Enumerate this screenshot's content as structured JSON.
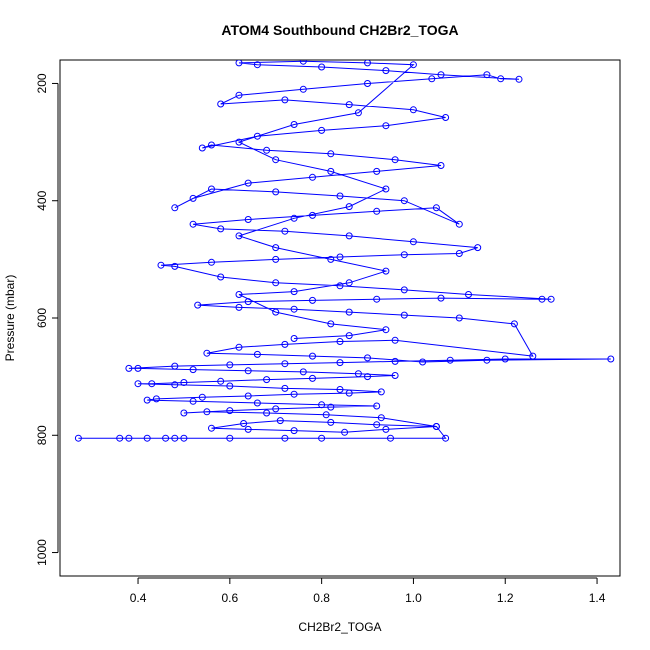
{
  "chart_data": {
    "type": "line",
    "title": "ATOM4 Southbound CH2Br2_TOGA",
    "xlabel": "CH2Br2_TOGA",
    "ylabel": "Pressure (mbar)",
    "xlim": [
      0.23,
      1.45
    ],
    "ylim": [
      1040,
      160
    ],
    "y_reversed": true,
    "xticks": [
      0.4,
      0.6,
      0.8,
      1.0,
      1.2,
      1.4
    ],
    "xtick_labels": [
      "0.4",
      "0.6",
      "0.8",
      "1.0",
      "1.2",
      "1.4"
    ],
    "yticks": [
      200,
      400,
      600,
      800,
      1000
    ],
    "ytick_labels": [
      "200",
      "400",
      "600",
      "800",
      "1000"
    ],
    "grid": false,
    "legend": "none",
    "series": [
      {
        "color": "#0000ff",
        "marker": "open-circle",
        "points": [
          [
            0.27,
            805
          ],
          [
            0.36,
            805
          ],
          [
            0.38,
            805
          ],
          [
            0.42,
            805
          ],
          [
            0.46,
            805
          ],
          [
            0.48,
            805
          ],
          [
            0.5,
            805
          ],
          [
            0.6,
            805
          ],
          [
            0.72,
            805
          ],
          [
            0.8,
            805
          ],
          [
            0.95,
            805
          ],
          [
            1.07,
            805
          ],
          [
            1.05,
            785
          ],
          [
            0.94,
            790
          ],
          [
            0.85,
            795
          ],
          [
            0.74,
            792
          ],
          [
            0.64,
            790
          ],
          [
            0.56,
            788
          ],
          [
            0.63,
            780
          ],
          [
            0.71,
            775
          ],
          [
            0.82,
            778
          ],
          [
            0.92,
            782
          ],
          [
            1.05,
            785
          ],
          [
            0.93,
            770
          ],
          [
            0.81,
            765
          ],
          [
            0.68,
            762
          ],
          [
            0.55,
            760
          ],
          [
            0.5,
            762
          ],
          [
            0.6,
            758
          ],
          [
            0.7,
            755
          ],
          [
            0.82,
            752
          ],
          [
            0.92,
            750
          ],
          [
            0.8,
            748
          ],
          [
            0.66,
            745
          ],
          [
            0.52,
            742
          ],
          [
            0.42,
            740
          ],
          [
            0.44,
            738
          ],
          [
            0.54,
            735
          ],
          [
            0.64,
            733
          ],
          [
            0.74,
            730
          ],
          [
            0.86,
            728
          ],
          [
            0.93,
            726
          ],
          [
            0.84,
            722
          ],
          [
            0.72,
            720
          ],
          [
            0.6,
            716
          ],
          [
            0.48,
            714
          ],
          [
            0.4,
            712
          ],
          [
            0.43,
            712
          ],
          [
            0.5,
            710
          ],
          [
            0.58,
            708
          ],
          [
            0.68,
            705
          ],
          [
            0.78,
            703
          ],
          [
            0.9,
            700
          ],
          [
            0.96,
            698
          ],
          [
            0.88,
            695
          ],
          [
            0.76,
            692
          ],
          [
            0.64,
            690
          ],
          [
            0.52,
            688
          ],
          [
            0.4,
            686
          ],
          [
            0.38,
            686
          ],
          [
            0.48,
            682
          ],
          [
            0.6,
            680
          ],
          [
            0.72,
            678
          ],
          [
            0.84,
            676
          ],
          [
            0.96,
            674
          ],
          [
            1.08,
            672
          ],
          [
            1.2,
            670
          ],
          [
            1.43,
            670
          ],
          [
            1.16,
            672
          ],
          [
            1.02,
            675
          ],
          [
            0.9,
            668
          ],
          [
            0.78,
            665
          ],
          [
            0.66,
            662
          ],
          [
            0.55,
            660
          ],
          [
            0.62,
            650
          ],
          [
            0.72,
            645
          ],
          [
            0.84,
            640
          ],
          [
            0.96,
            638
          ],
          [
            1.26,
            665
          ],
          [
            1.22,
            610
          ],
          [
            1.1,
            600
          ],
          [
            0.98,
            595
          ],
          [
            0.86,
            590
          ],
          [
            0.74,
            585
          ],
          [
            0.62,
            582
          ],
          [
            0.53,
            578
          ],
          [
            0.64,
            572
          ],
          [
            0.78,
            570
          ],
          [
            0.92,
            568
          ],
          [
            1.06,
            566
          ],
          [
            1.28,
            568
          ],
          [
            1.3,
            568
          ],
          [
            1.12,
            560
          ],
          [
            0.98,
            552
          ],
          [
            0.84,
            545
          ],
          [
            0.7,
            540
          ],
          [
            0.58,
            530
          ],
          [
            0.48,
            512
          ],
          [
            0.45,
            510
          ],
          [
            0.56,
            505
          ],
          [
            0.7,
            500
          ],
          [
            0.84,
            496
          ],
          [
            0.98,
            492
          ],
          [
            1.1,
            490
          ],
          [
            1.14,
            480
          ],
          [
            1.0,
            470
          ],
          [
            0.86,
            460
          ],
          [
            0.72,
            452
          ],
          [
            0.58,
            448
          ],
          [
            0.52,
            440
          ],
          [
            0.64,
            432
          ],
          [
            0.78,
            425
          ],
          [
            0.92,
            418
          ],
          [
            1.05,
            412
          ],
          [
            1.1,
            440
          ],
          [
            0.98,
            400
          ],
          [
            0.84,
            392
          ],
          [
            0.7,
            385
          ],
          [
            0.56,
            380
          ],
          [
            0.48,
            412
          ],
          [
            0.52,
            396
          ],
          [
            0.64,
            370
          ],
          [
            0.78,
            360
          ],
          [
            0.92,
            350
          ],
          [
            1.06,
            340
          ],
          [
            0.96,
            330
          ],
          [
            0.82,
            320
          ],
          [
            0.68,
            314
          ],
          [
            0.56,
            305
          ],
          [
            0.54,
            310
          ],
          [
            0.66,
            290
          ],
          [
            0.8,
            280
          ],
          [
            0.94,
            272
          ],
          [
            1.07,
            258
          ],
          [
            1.0,
            245
          ],
          [
            0.86,
            236
          ],
          [
            0.72,
            228
          ],
          [
            0.58,
            235
          ],
          [
            0.62,
            220
          ],
          [
            0.76,
            210
          ],
          [
            0.9,
            200
          ],
          [
            1.04,
            192
          ],
          [
            1.16,
            185
          ],
          [
            1.19,
            192
          ],
          [
            1.23,
            193
          ],
          [
            1.06,
            185
          ],
          [
            0.94,
            178
          ],
          [
            0.8,
            172
          ],
          [
            0.66,
            168
          ],
          [
            0.62,
            165
          ],
          [
            0.76,
            162
          ],
          [
            0.9,
            165
          ],
          [
            1.0,
            168
          ],
          [
            0.88,
            250
          ],
          [
            0.74,
            270
          ],
          [
            0.62,
            300
          ],
          [
            0.7,
            330
          ],
          [
            0.82,
            350
          ],
          [
            0.94,
            380
          ],
          [
            0.86,
            410
          ],
          [
            0.74,
            430
          ],
          [
            0.62,
            460
          ],
          [
            0.7,
            480
          ],
          [
            0.82,
            500
          ],
          [
            0.94,
            520
          ],
          [
            0.86,
            540
          ],
          [
            0.74,
            555
          ],
          [
            0.62,
            560
          ],
          [
            0.7,
            590
          ],
          [
            0.82,
            610
          ],
          [
            0.94,
            620
          ],
          [
            0.86,
            630
          ],
          [
            0.74,
            635
          ]
        ]
      }
    ]
  }
}
